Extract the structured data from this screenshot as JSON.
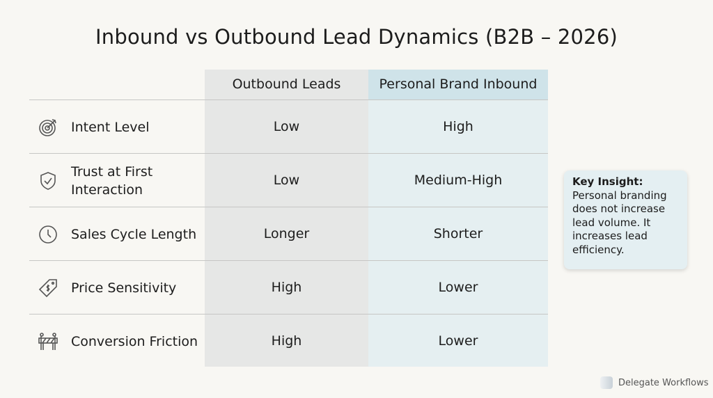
{
  "title": "Inbound vs Outbound Lead Dynamics (B2B – 2026)",
  "table": {
    "headers": [
      "Outbound Leads",
      "Personal Brand Inbound"
    ],
    "rows": [
      {
        "icon": "target-icon",
        "label": "Intent Level",
        "outbound": "Low",
        "inbound": "High"
      },
      {
        "icon": "shield-check-icon",
        "label": "Trust at First Interaction",
        "outbound": "Low",
        "inbound": "Medium-High"
      },
      {
        "icon": "clock-icon",
        "label": "Sales Cycle Length",
        "outbound": "Longer",
        "inbound": "Shorter"
      },
      {
        "icon": "price-tag-icon",
        "label": "Price Sensitivity",
        "outbound": "High",
        "inbound": "Lower"
      },
      {
        "icon": "barrier-icon",
        "label": "Conversion Friction",
        "outbound": "High",
        "inbound": "Lower"
      }
    ]
  },
  "insight": {
    "heading": "Key Insight:",
    "text": "Personal branding does not increase lead volume. It increases lead efficiency."
  },
  "brand": "Delegate Workflows",
  "colors": {
    "background": "#f8f7f3",
    "outbound_column": "#e6e7e6",
    "inbound_column": "#e5eff1",
    "inbound_header": "#cfe3e9",
    "insight_box": "#e4eff2"
  }
}
